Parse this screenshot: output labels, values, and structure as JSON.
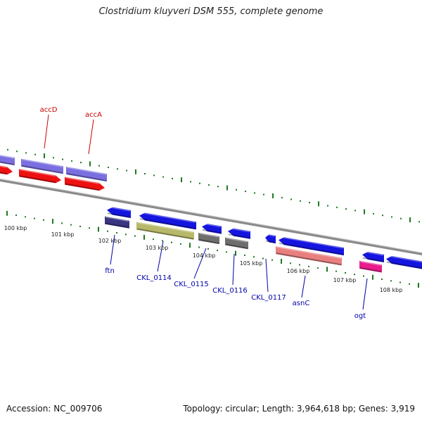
{
  "title": "Clostridium kluyveri DSM 555, complete genome",
  "footer": {
    "accession": "Accession: NC_009706",
    "topology": "Topology: circular; Length: 3,964,618 bp; Genes: 3,919"
  },
  "colors": {
    "backbone": "#8a8a8a",
    "tick": "#1d7a1d",
    "gene_label": "#0000aa",
    "gene_label_red": "#cc0000"
  },
  "kbp_labels": [
    "100 kbp",
    "101 kbp",
    "102 kbp",
    "103 kbp",
    "104 kbp",
    "105 kbp",
    "106 kbp",
    "107 kbp",
    "108 kbp"
  ],
  "genes": [
    {
      "label": "",
      "color": "#7a6fe0",
      "strand": "+",
      "ring": 2
    },
    {
      "label": "accD",
      "color": "#7a6fe0",
      "strand": "+",
      "ring": 2
    },
    {
      "label": "accA",
      "color": "#7a6fe0",
      "strand": "+",
      "ring": 2
    },
    {
      "label": "",
      "color": "#ee1111",
      "strand": "+",
      "ring": 1
    },
    {
      "label": "",
      "color": "#ee1111",
      "strand": "+",
      "ring": 1
    },
    {
      "label": "",
      "color": "#ee1111",
      "strand": "+",
      "ring": 1
    },
    {
      "label": "",
      "color": "#1515e0",
      "strand": "-",
      "ring": -1
    },
    {
      "label": "",
      "color": "#1515e0",
      "strand": "-",
      "ring": -1
    },
    {
      "label": "",
      "color": "#1515e0",
      "strand": "-",
      "ring": -1
    },
    {
      "label": "",
      "color": "#1515e0",
      "strand": "-",
      "ring": -1
    },
    {
      "label": "",
      "color": "#1515e0",
      "strand": "-",
      "ring": -1
    },
    {
      "label": "",
      "color": "#1515e0",
      "strand": "-",
      "ring": -1
    },
    {
      "label": "",
      "color": "#1515e0",
      "strand": "-",
      "ring": -1
    },
    {
      "label": "",
      "color": "#1515e0",
      "strand": "-",
      "ring": -1
    },
    {
      "label": "ftn",
      "color": "#3a3580",
      "strand": "-",
      "ring": -2
    },
    {
      "label": "CKL_0114",
      "color": "#b8b86a",
      "strand": "-",
      "ring": -2
    },
    {
      "label": "CKL_0115",
      "color": "#6e6e6e",
      "strand": "-",
      "ring": -2
    },
    {
      "label": "CKL_0116",
      "color": "#6e6e6e",
      "strand": "-",
      "ring": -2
    },
    {
      "label": "CKL_0117",
      "color": "#1515e0",
      "strand": "-",
      "ring": -1
    },
    {
      "label": "asnC",
      "color": "#e88080",
      "strand": "-",
      "ring": -2
    },
    {
      "label": "ogt",
      "color": "#e81c8c",
      "strand": "-",
      "ring": -2
    }
  ]
}
